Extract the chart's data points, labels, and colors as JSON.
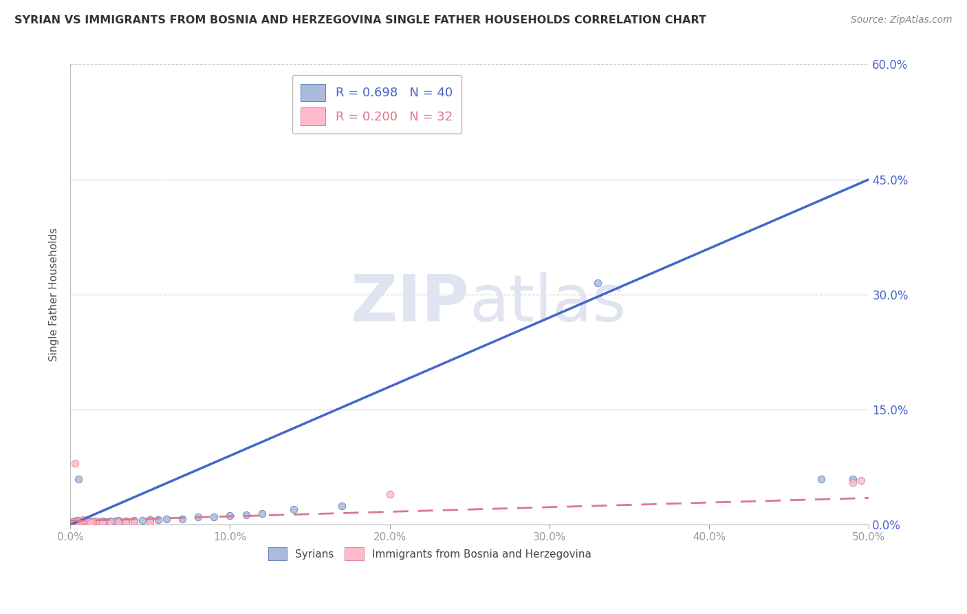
{
  "title": "SYRIAN VS IMMIGRANTS FROM BOSNIA AND HERZEGOVINA SINGLE FATHER HOUSEHOLDS CORRELATION CHART",
  "source": "Source: ZipAtlas.com",
  "ylabel": "Single Father Households",
  "xlim": [
    0.0,
    0.5
  ],
  "ylim": [
    0.0,
    0.6
  ],
  "xtick_vals": [
    0.0,
    0.1,
    0.2,
    0.3,
    0.4,
    0.5
  ],
  "xtick_labels": [
    "0.0%",
    "10.0%",
    "20.0%",
    "30.0%",
    "40.0%",
    "50.0%"
  ],
  "ytick_vals": [
    0.0,
    0.15,
    0.3,
    0.45,
    0.6
  ],
  "ytick_labels_right": [
    "0.0%",
    "15.0%",
    "30.0%",
    "45.0%",
    "60.0%"
  ],
  "color_syrian_fill": "#AABBDD",
  "color_syrian_edge": "#6688BB",
  "color_bosnia_fill": "#FFBBCC",
  "color_bosnia_edge": "#DD8899",
  "color_line_syrian": "#4466CC",
  "color_line_bosnia": "#DD7788",
  "color_axis_right": "#4466CC",
  "watermark_color": "#E0E4F0",
  "grid_color": "#CCCCCC",
  "background_color": "#FFFFFF",
  "syrian_line_x": [
    0.0,
    0.5
  ],
  "syrian_line_y": [
    0.0,
    0.45
  ],
  "bosnia_line_x": [
    0.0,
    0.5
  ],
  "bosnia_line_y": [
    0.005,
    0.035
  ],
  "syrian_scatter_x": [
    0.002,
    0.003,
    0.004,
    0.005,
    0.006,
    0.007,
    0.008,
    0.009,
    0.01,
    0.011,
    0.012,
    0.013,
    0.015,
    0.016,
    0.018,
    0.02,
    0.022,
    0.025,
    0.028,
    0.03,
    0.035,
    0.04,
    0.045,
    0.05,
    0.055,
    0.06,
    0.07,
    0.08,
    0.09,
    0.1,
    0.11,
    0.12,
    0.14,
    0.17,
    0.33,
    0.49,
    0.003,
    0.005,
    0.007,
    0.47
  ],
  "syrian_scatter_y": [
    0.005,
    0.003,
    0.006,
    0.004,
    0.005,
    0.003,
    0.005,
    0.003,
    0.006,
    0.004,
    0.005,
    0.004,
    0.005,
    0.003,
    0.004,
    0.005,
    0.004,
    0.005,
    0.005,
    0.006,
    0.005,
    0.006,
    0.006,
    0.007,
    0.007,
    0.008,
    0.008,
    0.01,
    0.01,
    0.012,
    0.013,
    0.015,
    0.02,
    0.025,
    0.315,
    0.06,
    0.004,
    0.06,
    0.004,
    0.06
  ],
  "bosnia_scatter_x": [
    0.002,
    0.003,
    0.004,
    0.005,
    0.006,
    0.007,
    0.008,
    0.009,
    0.01,
    0.011,
    0.012,
    0.014,
    0.016,
    0.018,
    0.02,
    0.025,
    0.03,
    0.035,
    0.04,
    0.05,
    0.2,
    0.49,
    0.495,
    0.003,
    0.004,
    0.005,
    0.006,
    0.007,
    0.008,
    0.016,
    0.014,
    0.013
  ],
  "bosnia_scatter_y": [
    0.004,
    0.003,
    0.004,
    0.003,
    0.004,
    0.003,
    0.004,
    0.003,
    0.004,
    0.003,
    0.004,
    0.003,
    0.004,
    0.003,
    0.003,
    0.004,
    0.004,
    0.003,
    0.004,
    0.004,
    0.04,
    0.055,
    0.058,
    0.08,
    0.004,
    0.003,
    0.006,
    0.005,
    0.007,
    0.005,
    0.004,
    0.003
  ]
}
